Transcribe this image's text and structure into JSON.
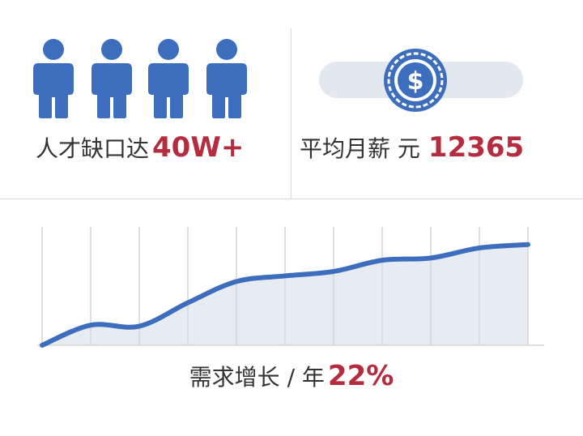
{
  "talent": {
    "label": "人才缺口达",
    "value": "40W+",
    "icon": "person-icon",
    "icon_count": 4
  },
  "salary": {
    "label": "平均月薪  元",
    "value": "12365",
    "icon": "dollar-coin-icon"
  },
  "growth": {
    "label": "需求增长 / 年",
    "value": "22%"
  },
  "colors": {
    "accent": "#3d6ebd",
    "highlight": "#b52c3e",
    "fill": "#e3e8f0",
    "text": "#333333"
  },
  "chart_data": {
    "type": "area",
    "title": "",
    "xlabel": "",
    "ylabel": "",
    "x": [
      0,
      1,
      2,
      3,
      4,
      5,
      6,
      7,
      8,
      9,
      10
    ],
    "series": [
      {
        "values": [
          0,
          18,
          17,
          38,
          57,
          62,
          66,
          76,
          78,
          87,
          90
        ]
      }
    ],
    "ylim": [
      0,
      100
    ],
    "grid": true
  }
}
